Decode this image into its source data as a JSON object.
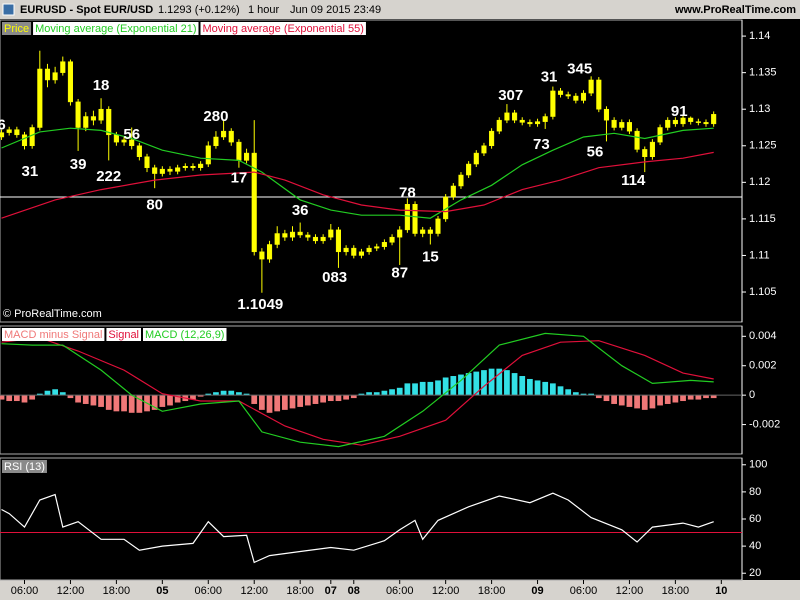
{
  "header": {
    "symbol": "EURUSD - Spot EUR/USD",
    "quote": "1.1293 (+0.12%)",
    "period": "1 hour",
    "date": "Jun 09 2015 23:49",
    "site": "www.ProRealTime.com"
  },
  "chart_data": [
    {
      "type": "candlestick",
      "xlim": [
        -0.2,
        96.7
      ],
      "ylim": [
        1.1009,
        1.1422
      ],
      "yticks": [
        1.105,
        1.11,
        1.115,
        1.12,
        1.125,
        1.13,
        1.135,
        1.14
      ],
      "candles": {
        "name": "Price",
        "color": "#ffff00",
        "open": [
          1.1262,
          1.1268,
          1.1272,
          1.1265,
          1.125,
          1.1275,
          1.1355,
          1.134,
          1.135,
          1.1365,
          1.131,
          1.1275,
          1.129,
          1.1285,
          1.13,
          1.1265,
          1.1255,
          1.1258,
          1.125,
          1.1235,
          1.122,
          1.1212,
          1.1218,
          1.1215,
          1.122,
          1.1222,
          1.122,
          1.1225,
          1.125,
          1.1262,
          1.127,
          1.1255,
          1.123,
          1.124,
          1.1105,
          1.1095,
          1.1115,
          1.113,
          1.1125,
          1.1132,
          1.1128,
          1.1125,
          1.112,
          1.1125,
          1.1135,
          1.1105,
          1.111,
          1.11,
          1.1105,
          1.111,
          1.1112,
          1.1118,
          1.1125,
          1.1135,
          1.117,
          1.113,
          1.1135,
          1.113,
          1.115,
          1.118,
          1.1195,
          1.121,
          1.1225,
          1.124,
          1.125,
          1.127,
          1.1285,
          1.1295,
          1.1285,
          1.1282,
          1.128,
          1.1283,
          1.129,
          1.1325,
          1.132,
          1.1318,
          1.1312,
          1.1322,
          1.134,
          1.13,
          1.1285,
          1.1275,
          1.1282,
          1.127,
          1.1245,
          1.1235,
          1.1255,
          1.1275,
          1.1285,
          1.128,
          1.1288,
          1.1283,
          1.1282,
          1.128
        ],
        "high": [
          1.1272,
          1.1276,
          1.1276,
          1.1269,
          1.1279,
          1.138,
          1.1362,
          1.1358,
          1.1372,
          1.1368,
          1.1314,
          1.1296,
          1.1298,
          1.1315,
          1.1304,
          1.1269,
          1.1262,
          1.1275,
          1.1254,
          1.1239,
          1.1224,
          1.1222,
          1.1222,
          1.1224,
          1.1226,
          1.1226,
          1.1229,
          1.1256,
          1.127,
          1.1285,
          1.1274,
          1.1259,
          1.1246,
          1.1285,
          1.111,
          1.112,
          1.114,
          1.1135,
          1.114,
          1.1145,
          1.1132,
          1.1129,
          1.1129,
          1.1143,
          1.1139,
          1.1114,
          1.1114,
          1.1109,
          1.1114,
          1.1116,
          1.1122,
          1.1129,
          1.114,
          1.1178,
          1.1174,
          1.1139,
          1.1139,
          1.1154,
          1.1184,
          1.1199,
          1.1214,
          1.1229,
          1.1244,
          1.1254,
          1.1274,
          1.1289,
          1.1307,
          1.1299,
          1.1289,
          1.1286,
          1.1287,
          1.1294,
          1.1331,
          1.1329,
          1.1324,
          1.1322,
          1.1326,
          1.1345,
          1.1344,
          1.1304,
          1.1289,
          1.1286,
          1.1286,
          1.1274,
          1.1249,
          1.1259,
          1.1279,
          1.1289,
          1.1289,
          1.1291,
          1.129,
          1.1287,
          1.1286,
          1.1297
        ],
        "low": [
          1.1258,
          1.1264,
          1.1261,
          1.1245,
          1.1246,
          1.1271,
          1.133,
          1.1335,
          1.1346,
          1.1305,
          1.1243,
          1.127,
          1.1278,
          1.128,
          1.123,
          1.125,
          1.125,
          1.1245,
          1.123,
          1.1214,
          1.1192,
          1.1208,
          1.121,
          1.1211,
          1.1216,
          1.1216,
          1.1216,
          1.1221,
          1.1246,
          1.1258,
          1.125,
          1.122,
          1.1226,
          1.11,
          1.1049,
          1.109,
          1.111,
          1.112,
          1.112,
          1.1124,
          1.112,
          1.1116,
          1.1116,
          1.1121,
          1.1083,
          1.11,
          1.1096,
          1.1096,
          1.1101,
          1.1106,
          1.1108,
          1.1114,
          1.1087,
          1.1131,
          1.1126,
          1.1125,
          1.1115,
          1.1126,
          1.1146,
          1.1176,
          1.1191,
          1.1206,
          1.1221,
          1.1236,
          1.1246,
          1.1266,
          1.1281,
          1.1281,
          1.1278,
          1.1276,
          1.1276,
          1.1273,
          1.1286,
          1.1316,
          1.1314,
          1.1308,
          1.1308,
          1.1318,
          1.1296,
          1.1256,
          1.1271,
          1.1271,
          1.1266,
          1.1241,
          1.1214,
          1.1231,
          1.1251,
          1.1271,
          1.1276,
          1.1276,
          1.1279,
          1.1278,
          1.1276,
          1.1276
        ],
        "close": [
          1.1268,
          1.1272,
          1.1265,
          1.125,
          1.1275,
          1.1355,
          1.134,
          1.135,
          1.1365,
          1.131,
          1.1275,
          1.129,
          1.1285,
          1.13,
          1.1265,
          1.1255,
          1.1258,
          1.125,
          1.1235,
          1.122,
          1.1212,
          1.1218,
          1.1215,
          1.122,
          1.1222,
          1.122,
          1.1225,
          1.125,
          1.1262,
          1.127,
          1.1255,
          1.123,
          1.124,
          1.1105,
          1.1095,
          1.1115,
          1.113,
          1.1125,
          1.1132,
          1.1128,
          1.1125,
          1.112,
          1.1125,
          1.1135,
          1.1105,
          1.111,
          1.11,
          1.1105,
          1.111,
          1.1112,
          1.1118,
          1.1125,
          1.1135,
          1.117,
          1.113,
          1.1135,
          1.113,
          1.115,
          1.118,
          1.1195,
          1.121,
          1.1225,
          1.124,
          1.125,
          1.127,
          1.1285,
          1.1295,
          1.1285,
          1.1282,
          1.128,
          1.1283,
          1.129,
          1.1325,
          1.132,
          1.1318,
          1.1312,
          1.1322,
          1.134,
          1.13,
          1.1285,
          1.1275,
          1.1282,
          1.127,
          1.1245,
          1.1235,
          1.1255,
          1.1275,
          1.1285,
          1.128,
          1.1288,
          1.1283,
          1.1282,
          1.128,
          1.1293
        ]
      },
      "series": [
        {
          "name": "Moving average (Exponential 21)",
          "color": "#22cc22",
          "x": [
            0,
            5,
            9,
            13,
            17,
            21,
            26,
            31,
            34,
            39,
            43,
            47,
            52,
            56,
            60,
            64,
            68,
            72,
            76,
            80,
            84,
            89,
            93
          ],
          "values": [
            1.1247,
            1.1269,
            1.1274,
            1.1271,
            1.126,
            1.1244,
            1.1233,
            1.123,
            1.1214,
            1.1176,
            1.1162,
            1.1155,
            1.1155,
            1.1151,
            1.1176,
            1.1196,
            1.1224,
            1.1244,
            1.1262,
            1.1267,
            1.126,
            1.1271,
            1.1274
          ]
        },
        {
          "name": "Moving average (Exponential 55)",
          "color": "#e0103a",
          "x": [
            0,
            7,
            13,
            20,
            26,
            33,
            37,
            42,
            47,
            52,
            58,
            63,
            68,
            73,
            78,
            84,
            89,
            93
          ],
          "values": [
            1.1151,
            1.1176,
            1.119,
            1.1203,
            1.121,
            1.1214,
            1.1203,
            1.1183,
            1.1169,
            1.1162,
            1.116,
            1.1169,
            1.119,
            1.1203,
            1.122,
            1.1228,
            1.1233,
            1.1241
          ]
        }
      ],
      "hline": 1.118,
      "hline_color": "#ffffff",
      "annotations": [
        {
          "text": "6",
          "x": 0,
          "y": 1.1278
        },
        {
          "text": "31",
          "x": 3.7,
          "y": 1.1214
        },
        {
          "text": "39",
          "x": 10,
          "y": 1.1224
        },
        {
          "text": "18",
          "x": 13,
          "y": 1.1332
        },
        {
          "text": "222",
          "x": 14,
          "y": 1.1207
        },
        {
          "text": "56",
          "x": 17,
          "y": 1.1265
        },
        {
          "text": "80",
          "x": 20,
          "y": 1.1168
        },
        {
          "text": "280",
          "x": 28,
          "y": 1.1289
        },
        {
          "text": "17",
          "x": 31,
          "y": 1.1205
        },
        {
          "text": "1.1049",
          "x": 33.8,
          "y": 1.1032
        },
        {
          "text": "36",
          "x": 39,
          "y": 1.1161
        },
        {
          "text": "083",
          "x": 43.5,
          "y": 1.1069
        },
        {
          "text": "87",
          "x": 52,
          "y": 1.1075
        },
        {
          "text": "78",
          "x": 53,
          "y": 1.1185
        },
        {
          "text": "15",
          "x": 56,
          "y": 1.1097
        },
        {
          "text": "307",
          "x": 66.5,
          "y": 1.1318
        },
        {
          "text": "73",
          "x": 70.5,
          "y": 1.1251
        },
        {
          "text": "31",
          "x": 71.5,
          "y": 1.1343
        },
        {
          "text": "345",
          "x": 75.5,
          "y": 1.1354
        },
        {
          "text": "56",
          "x": 77.5,
          "y": 1.1241
        },
        {
          "text": "114",
          "x": 82.5,
          "y": 1.1202
        },
        {
          "text": "91",
          "x": 88.5,
          "y": 1.1296
        }
      ],
      "copyright": "© ProRealTime.com"
    },
    {
      "type": "macd",
      "xlim": [
        -0.2,
        96.7
      ],
      "ylim": [
        -0.004,
        0.0047
      ],
      "yticks": [
        -0.002,
        0,
        0.002,
        0.004
      ],
      "histogram": {
        "name": "MACD minus Signal",
        "color": "#33e0e6",
        "negative_color": "#f07878",
        "values": [
          -0.0003,
          -0.0004,
          -0.0004,
          -0.0005,
          -0.0003,
          0.0001,
          0.0003,
          0.0004,
          0.0002,
          -0.0002,
          -0.0005,
          -0.0006,
          -0.0007,
          -0.0008,
          -0.001,
          -0.0011,
          -0.0011,
          -0.0012,
          -0.0012,
          -0.0011,
          -0.001,
          -0.0008,
          -0.0007,
          -0.0005,
          -0.0004,
          -0.0003,
          -0.0001,
          0.0001,
          0.0002,
          0.0003,
          0.0003,
          0.0002,
          0.0001,
          -0.0006,
          -0.001,
          -0.0012,
          -0.0011,
          -0.001,
          -0.0009,
          -0.0008,
          -0.0007,
          -0.0006,
          -0.0005,
          -0.0004,
          -0.0004,
          -0.0003,
          -0.0002,
          0.0001,
          0.0002,
          0.0002,
          0.0003,
          0.0004,
          0.0005,
          0.0008,
          0.0008,
          0.0009,
          0.0009,
          0.001,
          0.0012,
          0.0013,
          0.0014,
          0.0015,
          0.0016,
          0.0017,
          0.0018,
          0.0018,
          0.0017,
          0.0015,
          0.0013,
          0.0011,
          0.001,
          0.0009,
          0.0008,
          0.0006,
          0.0004,
          0.0002,
          0.0001,
          0.0001,
          -0.0002,
          -0.0004,
          -0.0006,
          -0.0007,
          -0.0008,
          -0.0009,
          -0.001,
          -0.0009,
          -0.0007,
          -0.0006,
          -0.0005,
          -0.0004,
          -0.0003,
          -0.0003,
          -0.0002,
          -0.0002
        ]
      },
      "series": [
        {
          "name": "Signal",
          "color": "#e0103a",
          "x": [
            0,
            5,
            10,
            16,
            21,
            26,
            31,
            37,
            42,
            47,
            52,
            58,
            63,
            68,
            73,
            78,
            84,
            89,
            93
          ],
          "values": [
            0.0036,
            0.0039,
            0.003,
            0.0017,
            0.0001,
            -0.0004,
            -0.0004,
            -0.0021,
            -0.003,
            -0.0034,
            -0.0028,
            -0.0017,
            0.0006,
            0.0027,
            0.0036,
            0.0037,
            0.0027,
            0.0015,
            0.0011
          ]
        },
        {
          "name": "MACD (12,26,9)",
          "color": "#22cc22",
          "x": [
            0,
            4,
            8,
            13,
            17,
            21,
            26,
            31,
            34,
            39,
            44,
            50,
            55,
            60,
            65,
            71,
            76,
            81,
            85,
            90,
            93
          ],
          "values": [
            0.0035,
            0.0034,
            0.0034,
            0.0017,
            0,
            -0.0011,
            -0.0006,
            -0.0004,
            -0.0025,
            -0.0032,
            -0.0035,
            -0.0028,
            -0.0011,
            0.001,
            0.0034,
            0.0042,
            0.004,
            0.002,
            0.0008,
            0.001,
            0.0009
          ]
        }
      ]
    },
    {
      "type": "line",
      "xlim": [
        -0.2,
        96.7
      ],
      "ylim": [
        15,
        105
      ],
      "yticks": [
        20,
        40,
        60,
        80,
        100
      ],
      "series": [
        {
          "name": "RSI (13)",
          "color": "#ffffff",
          "x": [
            0,
            1,
            3,
            5,
            7,
            8,
            10,
            13,
            16,
            18,
            21,
            25,
            27,
            29,
            32,
            33,
            35,
            39,
            43,
            46,
            50,
            52,
            54,
            55,
            57,
            61,
            65,
            69,
            72,
            74,
            77,
            81,
            83,
            85,
            89,
            91,
            93
          ],
          "values": [
            67,
            64,
            54,
            74,
            78,
            54,
            58,
            45,
            45,
            37,
            40,
            42,
            58,
            47,
            48,
            28,
            33,
            36,
            39,
            37,
            44,
            52,
            59,
            45,
            59,
            69,
            77,
            72,
            79,
            74,
            61,
            52,
            43,
            54,
            57,
            54,
            58
          ]
        }
      ],
      "hline": 50,
      "hline_color": "#e0103a",
      "xticks": [
        {
          "value": 3,
          "label": "06:00"
        },
        {
          "value": 9,
          "label": "12:00"
        },
        {
          "value": 15,
          "label": "18:00"
        },
        {
          "value": 21,
          "label": "05"
        },
        {
          "value": 27,
          "label": "06:00"
        },
        {
          "value": 33,
          "label": "12:00"
        },
        {
          "value": 39,
          "label": "18:00"
        },
        {
          "value": 43,
          "label": "07"
        },
        {
          "value": 46,
          "label": "08"
        },
        {
          "value": 52,
          "label": "06:00"
        },
        {
          "value": 58,
          "label": "12:00"
        },
        {
          "value": 64,
          "label": "18:00"
        },
        {
          "value": 70,
          "label": "09"
        },
        {
          "value": 76,
          "label": "06:00"
        },
        {
          "value": 82,
          "label": "12:00"
        },
        {
          "value": 88,
          "label": "18:00"
        },
        {
          "value": 94,
          "label": "10"
        }
      ]
    }
  ]
}
